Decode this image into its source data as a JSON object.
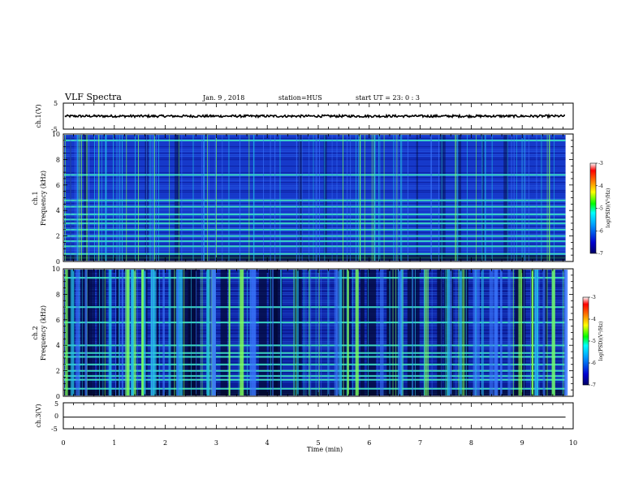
{
  "header": {
    "title": "VLF Spectra",
    "date": "Jan. 9 , 2018",
    "station": "station=HUS",
    "start": "start UT =  23: 0  : 3"
  },
  "chart_data": [
    {
      "type": "line",
      "panel": "ch1-waveform",
      "ylabel": "ch.1(V)",
      "ylim": [
        -5,
        5
      ],
      "yticks": [
        "5",
        "-5"
      ],
      "xlim": [
        0,
        10
      ],
      "series": [
        {
          "x": [
            0,
            9.85
          ],
          "y": [
            0.0,
            0.0
          ]
        }
      ],
      "line_color": "#000000"
    },
    {
      "type": "heatmap",
      "panel": "ch1-spectrogram",
      "ylabel_line1": "ch.1",
      "ylabel_line2": "Frequency (kHz)",
      "ylim": [
        0,
        10
      ],
      "yticks": [
        "0",
        "2",
        "4",
        "6",
        "8",
        "10"
      ],
      "xlim": [
        0,
        10
      ],
      "data_end_min": 9.85,
      "colorbar": {
        "label": "log(PSD)(V²/Hz)",
        "ticks": [
          "-3",
          "-4",
          "-5",
          "-6",
          "-7"
        ],
        "range": [
          -7,
          -3
        ]
      },
      "bands_khz": [
        0.3,
        0.6,
        1.2,
        1.6,
        2.0,
        2.5,
        3.0,
        3.3,
        3.7,
        4.3,
        4.8,
        6.8,
        9.5
      ]
    },
    {
      "type": "heatmap",
      "panel": "ch2-spectrogram",
      "ylabel_line1": "ch.2",
      "ylabel_line2": "Frequency (kHz)",
      "ylim": [
        0,
        10
      ],
      "yticks": [
        "0",
        "2",
        "4",
        "6",
        "8",
        "10"
      ],
      "xlim": [
        0,
        10
      ],
      "data_end_min": 9.85,
      "colorbar": {
        "label": "log(PSD)(V²/Hz)",
        "ticks": [
          "-3",
          "-4",
          "-5",
          "-6",
          "-7"
        ],
        "range": [
          -7,
          -3
        ]
      },
      "bands_khz": [
        0.6,
        1.3,
        1.6,
        2.0,
        2.5,
        3.1,
        3.4,
        4.0,
        5.8,
        7.0,
        9.3
      ]
    },
    {
      "type": "line",
      "panel": "ch3-waveform",
      "ylabel": "ch.3(V)",
      "ylim": [
        -5,
        5
      ],
      "yticks": [
        "5",
        "0",
        "-5"
      ],
      "xlim": [
        0,
        10
      ],
      "xlabel": "Time (min)",
      "xticks": [
        "0",
        "1",
        "2",
        "3",
        "4",
        "5",
        "6",
        "7",
        "8",
        "9",
        "10"
      ],
      "series": [
        {
          "x": [
            0,
            9.85
          ],
          "y": [
            -0.5,
            -0.5
          ]
        }
      ],
      "line_color": "#000000"
    }
  ]
}
